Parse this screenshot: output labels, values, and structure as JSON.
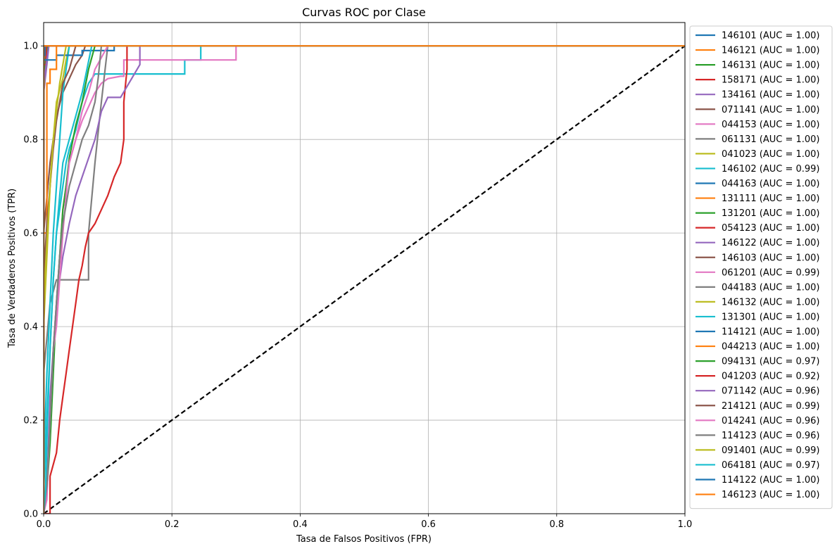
{
  "chart_data": {
    "type": "line",
    "title": "Curvas ROC por Clase",
    "xlabel": "Tasa de Falsos Positivos (FPR)",
    "ylabel": "Tasa de Verdaderos Positivos (TPR)",
    "xlim": [
      0,
      1
    ],
    "ylim": [
      0,
      1.05
    ],
    "xticks": [
      "0.0",
      "0.2",
      "0.4",
      "0.6",
      "0.8",
      "1.0"
    ],
    "yticks": [
      "0.0",
      "0.2",
      "0.4",
      "0.6",
      "0.8",
      "1.0"
    ],
    "grid": true,
    "legend_position": "outside-right",
    "diagonal": {
      "style": "dashed",
      "color": "#000000"
    },
    "series": [
      {
        "name": "146101 (AUC = 1.00)",
        "color": "#1f77b4",
        "x": [
          0,
          0,
          0.003,
          0.003,
          1
        ],
        "y": [
          0,
          0.96,
          0.96,
          1,
          1
        ]
      },
      {
        "name": "146121 (AUC = 1.00)",
        "color": "#ff7f0e",
        "x": [
          0,
          0,
          0.004,
          0.004,
          1
        ],
        "y": [
          0,
          0.98,
          0.98,
          1,
          1
        ]
      },
      {
        "name": "146131 (AUC = 1.00)",
        "color": "#2ca02c",
        "x": [
          0,
          0,
          0.004,
          0.006,
          1
        ],
        "y": [
          0,
          0.9,
          0.97,
          1,
          1
        ]
      },
      {
        "name": "158171 (AUC = 1.00)",
        "color": "#d62728",
        "x": [
          0,
          0,
          0.003,
          0.003,
          0.005,
          1
        ],
        "y": [
          0,
          0.95,
          0.95,
          0.97,
          1,
          1
        ]
      },
      {
        "name": "134161 (AUC = 1.00)",
        "color": "#9467bd",
        "x": [
          0,
          0,
          0.005,
          0.008,
          1
        ],
        "y": [
          0,
          0.9,
          0.96,
          1,
          1
        ]
      },
      {
        "name": "071141 (AUC = 1.00)",
        "color": "#8c564b",
        "x": [
          0,
          0,
          0.004,
          0.006,
          1
        ],
        "y": [
          0,
          0.92,
          0.97,
          1,
          1
        ]
      },
      {
        "name": "044153 (AUC = 1.00)",
        "color": "#e377c2",
        "x": [
          0,
          0,
          0.003,
          0.006,
          1
        ],
        "y": [
          0,
          0.94,
          0.98,
          1,
          1
        ]
      },
      {
        "name": "061131 (AUC = 1.00)",
        "color": "#7f7f7f",
        "x": [
          0,
          0,
          0.005,
          0.007,
          1
        ],
        "y": [
          0,
          0.93,
          0.97,
          1,
          1
        ]
      },
      {
        "name": "041023 (AUC = 1.00)",
        "color": "#bcbd22",
        "x": [
          0,
          0,
          0.004,
          0.007,
          1
        ],
        "y": [
          0,
          0.91,
          0.97,
          1,
          1
        ]
      },
      {
        "name": "146102 (AUC = 0.99)",
        "color": "#17becf",
        "x": [
          0,
          0,
          0.005,
          0.01,
          0.015,
          0.02,
          0.03,
          0.035,
          0.04,
          0.045,
          0.05,
          0.055,
          0.06,
          0.065,
          0.07,
          0.08,
          0.22,
          0.22,
          0.245,
          0.245,
          1
        ],
        "y": [
          0,
          0.05,
          0.2,
          0.35,
          0.5,
          0.6,
          0.7,
          0.75,
          0.78,
          0.8,
          0.82,
          0.85,
          0.88,
          0.9,
          0.92,
          0.94,
          0.94,
          0.97,
          0.97,
          1,
          1
        ]
      },
      {
        "name": "044163 (AUC = 1.00)",
        "color": "#1f77b4",
        "x": [
          0,
          0,
          0.002,
          0.002,
          1
        ],
        "y": [
          0,
          0.97,
          0.97,
          1,
          1
        ]
      },
      {
        "name": "131111 (AUC = 1.00)",
        "color": "#ff7f0e",
        "x": [
          0,
          0,
          0.003,
          0.003,
          1
        ],
        "y": [
          0,
          0.95,
          0.95,
          1,
          1
        ]
      },
      {
        "name": "131201 (AUC = 1.00)",
        "color": "#2ca02c",
        "x": [
          0,
          0,
          0.004,
          0.006,
          1
        ],
        "y": [
          0,
          0.93,
          0.98,
          1,
          1
        ]
      },
      {
        "name": "054123 (AUC = 1.00)",
        "color": "#d62728",
        "x": [
          0,
          0,
          0.004,
          0.004,
          1
        ],
        "y": [
          0,
          0.96,
          0.96,
          1,
          1
        ]
      },
      {
        "name": "146122 (AUC = 1.00)",
        "color": "#9467bd",
        "x": [
          0,
          0,
          0.005,
          0.008,
          1
        ],
        "y": [
          0,
          0.92,
          0.97,
          1,
          1
        ]
      },
      {
        "name": "146103 (AUC = 1.00)",
        "color": "#8c564b",
        "x": [
          0,
          0,
          0.01,
          0.02,
          0.03,
          0.04,
          0.05,
          0.06,
          0.065,
          1
        ],
        "y": [
          0,
          0.6,
          0.75,
          0.85,
          0.9,
          0.93,
          0.96,
          0.98,
          1,
          1
        ]
      },
      {
        "name": "061201 (AUC = 0.99)",
        "color": "#e377c2",
        "x": [
          0,
          0.005,
          0.01,
          0.015,
          0.02,
          0.025,
          0.03,
          0.04,
          0.05,
          0.06,
          0.07,
          0.08,
          0.09,
          0.1,
          0.12,
          0.125,
          0.125,
          0.3,
          0.3,
          1
        ],
        "y": [
          0,
          0.03,
          0.2,
          0.35,
          0.45,
          0.55,
          0.65,
          0.75,
          0.8,
          0.84,
          0.87,
          0.9,
          0.92,
          0.93,
          0.935,
          0.935,
          0.97,
          0.97,
          1,
          1
        ]
      },
      {
        "name": "044183 (AUC = 1.00)",
        "color": "#7f7f7f",
        "x": [
          0,
          0,
          0.01,
          0.02,
          0.03,
          0.07,
          0.07,
          0.08,
          0.09,
          0.1,
          1
        ],
        "y": [
          0,
          0.3,
          0.45,
          0.5,
          0.5,
          0.5,
          0.6,
          0.75,
          0.88,
          1,
          1
        ]
      },
      {
        "name": "146132 (AUC = 1.00)",
        "color": "#bcbd22",
        "x": [
          0,
          0,
          0.005,
          0.01,
          0.015,
          0.02,
          0.03,
          0.035,
          0.04,
          1
        ],
        "y": [
          0,
          0.4,
          0.55,
          0.7,
          0.8,
          0.88,
          0.93,
          0.97,
          1,
          1
        ]
      },
      {
        "name": "131301 (AUC = 1.00)",
        "color": "#17becf",
        "x": [
          0,
          0,
          0.005,
          0.01,
          0.015,
          0.02,
          0.025,
          0.03,
          0.04,
          1
        ],
        "y": [
          0,
          0.1,
          0.3,
          0.45,
          0.6,
          0.7,
          0.8,
          0.9,
          1,
          1
        ]
      },
      {
        "name": "114121 (AUC = 1.00)",
        "color": "#1f77b4",
        "x": [
          0,
          0,
          0.02,
          0.02,
          0.06,
          0.06,
          0.11,
          0.11,
          1
        ],
        "y": [
          0,
          0.97,
          0.97,
          0.98,
          0.98,
          0.99,
          0.99,
          1,
          1
        ]
      },
      {
        "name": "044213 (AUC = 1.00)",
        "color": "#ff7f0e",
        "x": [
          0,
          0,
          0.005,
          0.005,
          0.01,
          0.01,
          0.02,
          0.02,
          1
        ],
        "y": [
          0,
          0.6,
          0.6,
          0.92,
          0.92,
          0.95,
          0.95,
          1,
          1
        ]
      },
      {
        "name": "094131 (AUC = 0.97)",
        "color": "#2ca02c",
        "x": [
          0,
          0.005,
          0.01,
          0.015,
          0.02,
          0.025,
          0.03,
          0.035,
          0.04,
          0.05,
          0.06,
          0.07,
          0.08,
          1
        ],
        "y": [
          0,
          0.05,
          0.15,
          0.3,
          0.45,
          0.55,
          0.65,
          0.7,
          0.76,
          0.83,
          0.88,
          0.95,
          1,
          1
        ]
      },
      {
        "name": "041203 (AUC = 0.92)",
        "color": "#d62728",
        "x": [
          0,
          0.01,
          0.01,
          0.02,
          0.025,
          0.03,
          0.035,
          0.04,
          0.045,
          0.05,
          0.055,
          0.06,
          0.065,
          0.07,
          0.08,
          0.09,
          0.1,
          0.11,
          0.12,
          0.125,
          0.125,
          0.13,
          0.13,
          1
        ],
        "y": [
          0,
          0,
          0.08,
          0.13,
          0.2,
          0.25,
          0.3,
          0.35,
          0.4,
          0.45,
          0.5,
          0.53,
          0.57,
          0.6,
          0.62,
          0.65,
          0.68,
          0.72,
          0.75,
          0.8,
          0.88,
          0.95,
          1,
          1
        ]
      },
      {
        "name": "071142 (AUC = 0.96)",
        "color": "#9467bd",
        "x": [
          0,
          0.005,
          0.01,
          0.02,
          0.03,
          0.04,
          0.05,
          0.06,
          0.07,
          0.08,
          0.09,
          0.1,
          0.12,
          0.15,
          0.15,
          1
        ],
        "y": [
          0,
          0.05,
          0.25,
          0.45,
          0.55,
          0.62,
          0.68,
          0.72,
          0.76,
          0.8,
          0.86,
          0.89,
          0.89,
          0.96,
          1,
          1
        ]
      },
      {
        "name": "214121 (AUC = 0.99)",
        "color": "#8c564b",
        "x": [
          0,
          0,
          0.005,
          0.01,
          0.015,
          0.02,
          0.025,
          0.03,
          0.04,
          0.05,
          1
        ],
        "y": [
          0,
          0.5,
          0.62,
          0.7,
          0.78,
          0.84,
          0.88,
          0.92,
          0.95,
          1,
          1
        ]
      },
      {
        "name": "014241 (AUC = 0.96)",
        "color": "#e377c2",
        "x": [
          0,
          0.005,
          0.01,
          0.015,
          0.02,
          0.025,
          0.03,
          0.035,
          0.04,
          0.05,
          0.06,
          0.07,
          0.08,
          0.1,
          1
        ],
        "y": [
          0,
          0.04,
          0.2,
          0.35,
          0.4,
          0.5,
          0.6,
          0.68,
          0.75,
          0.8,
          0.86,
          0.9,
          0.95,
          1,
          1
        ]
      },
      {
        "name": "114123 (AUC = 0.96)",
        "color": "#7f7f7f",
        "x": [
          0,
          0.005,
          0.01,
          0.015,
          0.02,
          0.025,
          0.03,
          0.04,
          0.05,
          0.06,
          0.07,
          0.08,
          0.085,
          0.09,
          1
        ],
        "y": [
          0,
          0.06,
          0.2,
          0.35,
          0.45,
          0.55,
          0.62,
          0.7,
          0.75,
          0.8,
          0.83,
          0.88,
          0.93,
          1,
          1
        ]
      },
      {
        "name": "091401 (AUC = 0.99)",
        "color": "#bcbd22",
        "x": [
          0,
          0,
          0.005,
          0.01,
          0.015,
          0.02,
          0.025,
          0.03,
          0.035,
          1
        ],
        "y": [
          0,
          0.45,
          0.58,
          0.7,
          0.8,
          0.86,
          0.92,
          0.96,
          1,
          1
        ]
      },
      {
        "name": "064181 (AUC = 0.97)",
        "color": "#17becf",
        "x": [
          0,
          0.003,
          0.006,
          0.01,
          0.015,
          0.02,
          0.025,
          0.03,
          0.04,
          0.05,
          0.06,
          0.075,
          1
        ],
        "y": [
          0,
          0.05,
          0.2,
          0.35,
          0.5,
          0.6,
          0.68,
          0.75,
          0.8,
          0.85,
          0.9,
          1,
          1
        ]
      },
      {
        "name": "114122 (AUC = 1.00)",
        "color": "#1f77b4",
        "x": [
          0,
          0,
          0.002,
          0.002,
          1
        ],
        "y": [
          0,
          0.98,
          0.98,
          1,
          1
        ]
      },
      {
        "name": "146123 (AUC = 1.00)",
        "color": "#ff7f0e",
        "x": [
          0,
          0,
          1
        ],
        "y": [
          0,
          1,
          1
        ]
      }
    ]
  }
}
